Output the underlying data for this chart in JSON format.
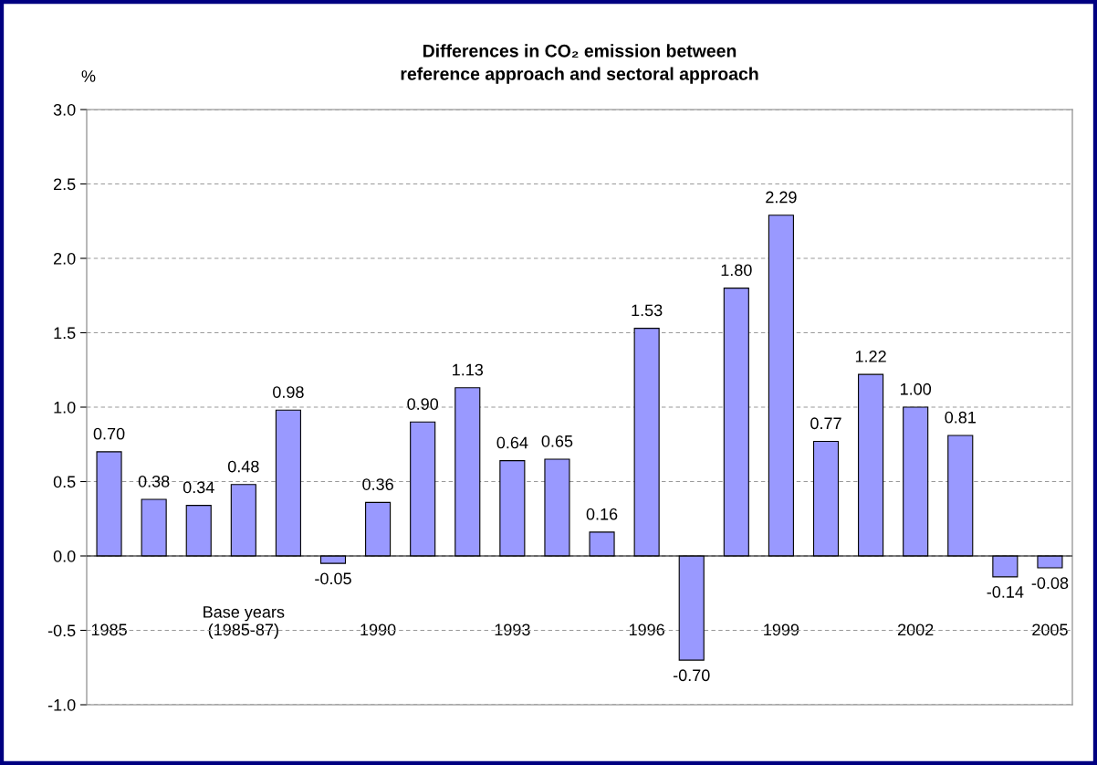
{
  "chart_data": {
    "type": "bar",
    "title": "Differences in CO₂ emission between\nreference approach and sectoral approach",
    "ylabel": "%",
    "categories": [
      "1985",
      null,
      null,
      "Base years\n(1985-87)",
      null,
      null,
      "1990",
      null,
      null,
      "1993",
      null,
      null,
      "1996",
      null,
      null,
      "1999",
      null,
      null,
      "2002",
      null,
      null,
      "2005"
    ],
    "values": [
      0.7,
      0.38,
      0.34,
      0.48,
      0.98,
      -0.05,
      0.36,
      0.9,
      1.13,
      0.64,
      0.65,
      0.16,
      1.53,
      -0.7,
      1.8,
      2.29,
      0.77,
      1.22,
      1.0,
      0.81,
      -0.14,
      -0.08
    ],
    "value_labels": [
      "0.70",
      "0.38",
      "0.34",
      "0.48",
      "0.98",
      "-0.05",
      "0.36",
      "0.90",
      "1.13",
      "0.64",
      "0.65",
      "0.16",
      "1.53",
      "-0.70",
      "1.80",
      "2.29",
      "0.77",
      "1.22",
      "1.00",
      "0.81",
      "-0.14",
      "-0.08"
    ],
    "color": "#9999ff",
    "ylim": [
      -1.0,
      3.0
    ],
    "yticks": [
      {
        "value": -1.0,
        "label": "-1.0"
      },
      {
        "value": -0.5,
        "label": "-0.5"
      },
      {
        "value": 0.0,
        "label": "0.0"
      },
      {
        "value": 0.5,
        "label": "0.5"
      },
      {
        "value": 1.0,
        "label": "1.0"
      },
      {
        "value": 1.5,
        "label": "1.5"
      },
      {
        "value": 2.0,
        "label": "2.0"
      },
      {
        "value": 2.5,
        "label": "2.5"
      },
      {
        "value": 3.0,
        "label": "3.0"
      }
    ],
    "grid": "y"
  }
}
